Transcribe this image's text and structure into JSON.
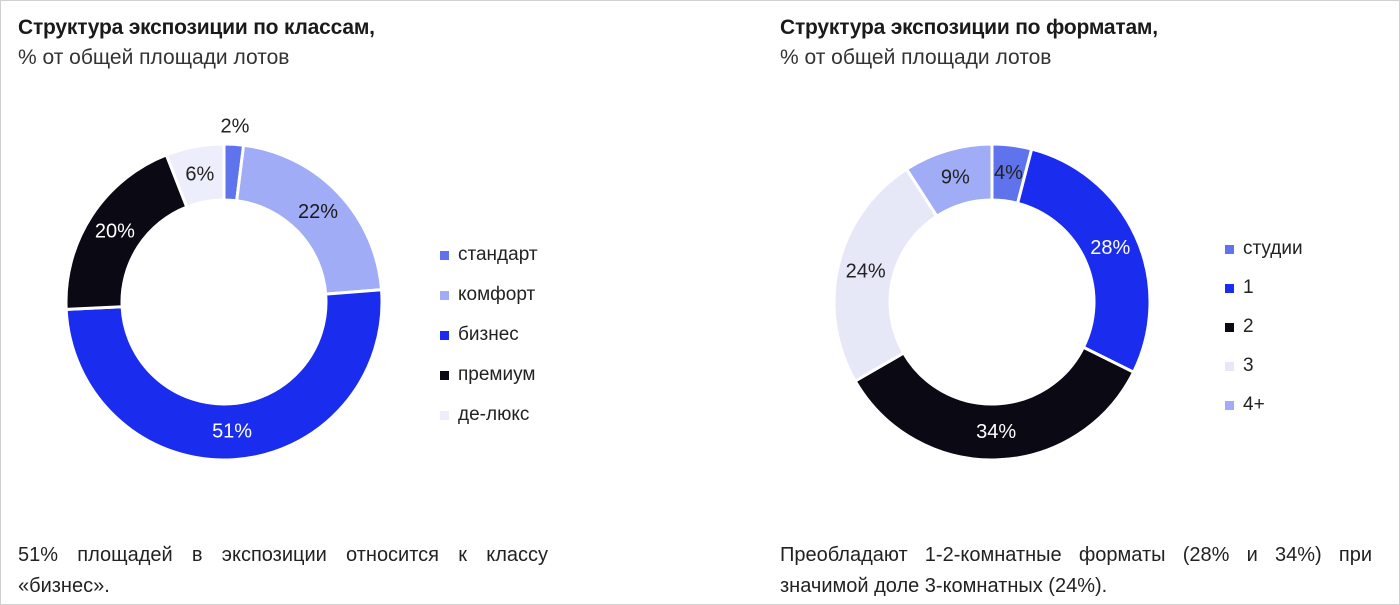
{
  "colors": {
    "standard": "#5f73ec",
    "comfort": "#a0acf6",
    "business": "#1a2cee",
    "premium": "#0b0a14",
    "deluxe": "#eceefb",
    "studio": "#5f73ec",
    "one": "#1a2cee",
    "two": "#0b0a14",
    "three": "#e7e8f7",
    "four_plus": "#a0acf6"
  },
  "chart_data": [
    {
      "type": "pie",
      "title": "Структура экспозиции по классам,",
      "subtitle": "% от общей площади лотов",
      "categories": [
        "стандарт",
        "комфорт",
        "бизнес",
        "премиум",
        "де-люкс"
      ],
      "values": [
        2,
        22,
        51,
        20,
        6
      ],
      "labels": [
        "2%",
        "22%",
        "51%",
        "20%",
        "6%"
      ],
      "colors": [
        "#5f73ec",
        "#a0acf6",
        "#1a2cee",
        "#0b0a14",
        "#eceefb"
      ],
      "label_colors": [
        "#222222",
        "#1a1a1a",
        "#ffffff",
        "#ffffff",
        "#222222"
      ],
      "legend_position": "right",
      "note": "51% площадей в экспозиции относится к классу «бизнес»."
    },
    {
      "type": "pie",
      "title": "Структура экспозиции по форматам,",
      "subtitle": "% от общей площади лотов",
      "categories": [
        "студии",
        "1",
        "2",
        "3",
        "4+"
      ],
      "values": [
        4,
        28,
        34,
        24,
        9
      ],
      "labels": [
        "4%",
        "28%",
        "34%",
        "24%",
        "9%"
      ],
      "colors": [
        "#5f73ec",
        "#1a2cee",
        "#0b0a14",
        "#e7e8f7",
        "#a0acf6"
      ],
      "label_colors": [
        "#222222",
        "#ffffff",
        "#ffffff",
        "#222222",
        "#222222"
      ],
      "legend_position": "right",
      "note": "Преобладают 1-2-комнатные форматы (28% и 34%) при значимой доле 3-комнатных (24%)."
    }
  ]
}
